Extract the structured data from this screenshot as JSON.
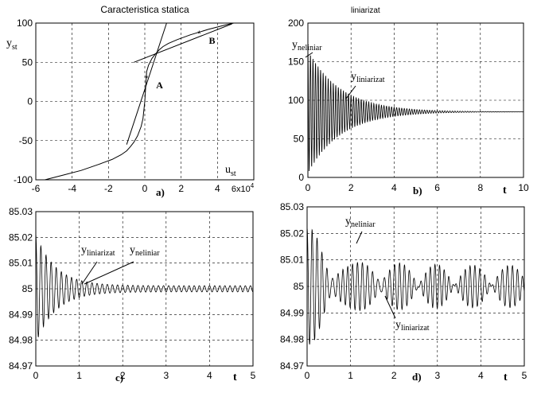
{
  "chart_data": [
    {
      "id": "a",
      "type": "line",
      "title": "Caracteristica statica",
      "panel_label": "a)",
      "xlim": [
        -60000,
        60000
      ],
      "ylim": [
        -100,
        100
      ],
      "xticks": [
        -60000,
        -40000,
        -20000,
        0,
        20000,
        40000,
        60000
      ],
      "xtick_labels": [
        "-6",
        "-4",
        "-2",
        "0",
        "2",
        "4",
        "6"
      ],
      "xscale_base": "6x10",
      "xscale_exp": "4",
      "yticks": [
        -100,
        -50,
        0,
        50,
        100
      ],
      "ytick_labels": [
        "-100",
        "-50",
        "0",
        "50",
        "100"
      ],
      "grid": true,
      "ylabel": {
        "main": "y",
        "sub": "st"
      },
      "xlabel": {
        "main": "u",
        "sub": "st"
      },
      "series": [
        {
          "x": [
            -55000,
            -45000,
            -35000,
            -25000,
            -18000,
            -13000,
            -10000,
            -8000,
            -6000,
            -4000,
            -2000,
            -1000,
            0,
            1000,
            2000,
            4000,
            6000,
            8000,
            10000,
            13000,
            18000,
            25000,
            35000,
            45000,
            49000
          ],
          "y": [
            -100,
            -94,
            -88,
            -80,
            -74,
            -68,
            -63,
            -58,
            -52,
            -44,
            -32,
            -22,
            0,
            38,
            46,
            55,
            61,
            66,
            70,
            74,
            79,
            85,
            92,
            98,
            100
          ]
        },
        {
          "x": [
            -10000,
            12000
          ],
          "y": [
            -55,
            100
          ]
        },
        {
          "x": [
            -6000,
            48000
          ],
          "y": [
            50,
            99
          ]
        }
      ],
      "points": [
        {
          "label": "A",
          "x": 1000,
          "y": 30
        },
        {
          "label": "B",
          "x": 30000,
          "y": 87
        }
      ]
    },
    {
      "id": "b",
      "type": "line",
      "title": "liniarizat",
      "panel_label": "b)",
      "xlim": [
        0,
        10
      ],
      "ylim": [
        0,
        200
      ],
      "xticks": [
        0,
        2,
        4,
        6,
        8,
        10
      ],
      "xtick_labels": [
        "0",
        "2",
        "4",
        "6",
        "8",
        "10"
      ],
      "yticks": [
        0,
        50,
        100,
        150,
        200
      ],
      "ytick_labels": [
        "0",
        "50",
        "100",
        "150",
        "200"
      ],
      "grid": true,
      "xlabel": "t",
      "signal": {
        "baseline": 85,
        "amplitude": 80,
        "decay": 0.65,
        "frequency_hz": 8.5
      },
      "annotations": [
        {
          "main": "y",
          "sub": "neliniar"
        },
        {
          "main": "y",
          "sub": "liniarizat"
        }
      ]
    },
    {
      "id": "c",
      "type": "line",
      "panel_label": "c)",
      "xlim": [
        0,
        5
      ],
      "ylim": [
        84.97,
        85.03
      ],
      "xticks": [
        0,
        1,
        2,
        3,
        4,
        5
      ],
      "xtick_labels": [
        "0",
        "1",
        "2",
        "3",
        "4",
        "5"
      ],
      "yticks": [
        84.97,
        84.98,
        84.99,
        85,
        85.01,
        85.02,
        85.03
      ],
      "ytick_labels": [
        "84.97",
        "84.98",
        "84.99",
        "85",
        "85.01",
        "85.02",
        "85.03"
      ],
      "grid": true,
      "xlabel": "t",
      "signal": {
        "baseline": 85,
        "amplitude": 0.02,
        "decay": 2.2,
        "frequency_hz": 8.5,
        "steady_amplitude": 0.0012
      },
      "annotations": [
        {
          "main": "y",
          "sub": "liniarizat"
        },
        {
          "main": "y",
          "sub": "neliniar"
        }
      ]
    },
    {
      "id": "d",
      "type": "line",
      "panel_label": "d)",
      "xlim": [
        0,
        5
      ],
      "ylim": [
        84.97,
        85.03
      ],
      "xticks": [
        0,
        1,
        2,
        3,
        4,
        5
      ],
      "xtick_labels": [
        "0",
        "1",
        "2",
        "3",
        "4",
        "5"
      ],
      "yticks": [
        84.97,
        84.98,
        84.99,
        85,
        85.01,
        85.02,
        85.03
      ],
      "ytick_labels": [
        "84.97",
        "84.98",
        "84.99",
        "85",
        "85.01",
        "85.02",
        "85.03"
      ],
      "grid": true,
      "xlabel": "t",
      "signal": {
        "baseline": 85,
        "amplitude": 0.022,
        "decay": 1.4,
        "frequency_hz": 8.5,
        "noise_amplitude": 0.008
      },
      "annotations": [
        {
          "main": "y",
          "sub": "neliniar"
        },
        {
          "main": "y",
          "sub": "liniarizat"
        }
      ]
    }
  ]
}
